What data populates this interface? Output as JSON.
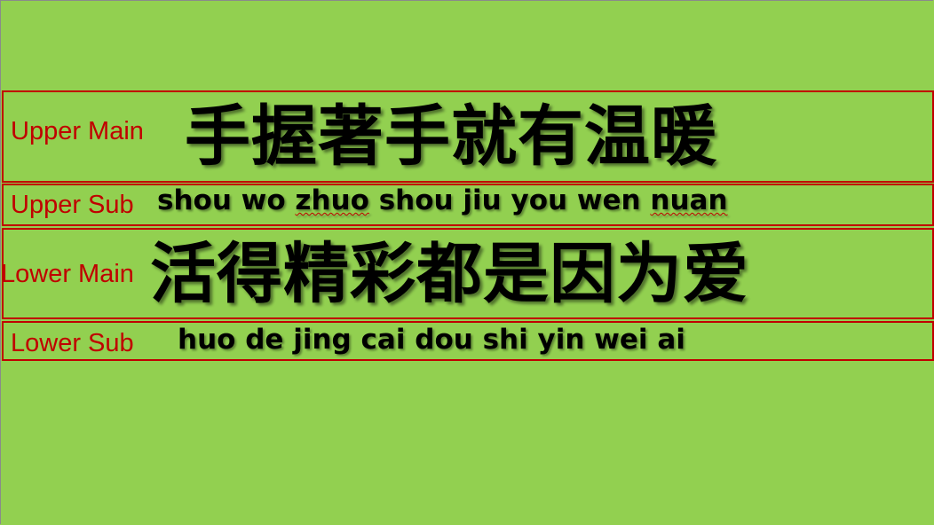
{
  "slide": {
    "background_color": "#92d050",
    "band_border_color": "#c00000"
  },
  "upper_main": {
    "label": "Upper Main",
    "text": "手握著手就有温暖"
  },
  "upper_sub": {
    "label": "Upper Sub",
    "text_a": "shou wo ",
    "text_b": "zhuo",
    "text_c": " shou jiu you wen ",
    "text_d": "nuan"
  },
  "lower_main": {
    "label": "Lower Main",
    "text": "活得精彩都是因为爱"
  },
  "lower_sub": {
    "label": "Lower Sub",
    "text": "huo de jing cai dou shi yin wei ai"
  }
}
